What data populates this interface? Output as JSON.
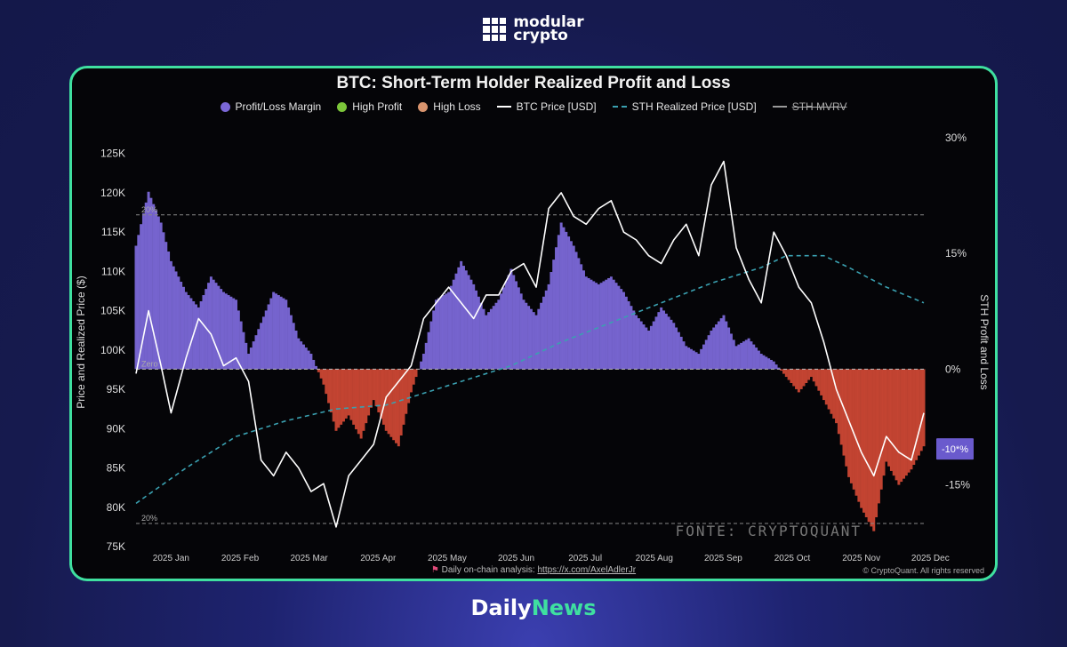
{
  "brand": {
    "line1": "modular",
    "line2": "crypto"
  },
  "footer_brand": {
    "part1": "Daily",
    "part2": "News"
  },
  "colors": {
    "profit": "#7b68d8",
    "loss": "#d64a36",
    "frame": "#3fe0a0",
    "btc": "#ffffff",
    "sth": "#3aa0b0"
  },
  "chart_data": {
    "type": "area",
    "title": "BTC: Short-Term Holder Realized Profit and Loss",
    "legend": [
      "Profit/Loss Margin",
      "High Profit",
      "High Loss",
      "BTC Price [USD]",
      "STH Realized Price [USD]",
      "STH MVRV"
    ],
    "ylabel_left": "Price and Realized Price ($)",
    "ylabel_right": "STH Profit and Loss",
    "left_ticks": [
      "125K",
      "120K",
      "115K",
      "110K",
      "105K",
      "100K",
      "95K",
      "90K",
      "85K",
      "80K",
      "75K"
    ],
    "right_ticks": [
      "30%",
      "15%",
      "0%",
      "-15%"
    ],
    "x_ticks": [
      "2025 Jan",
      "2025 Feb",
      "2025 Mar",
      "2025 Apr",
      "2025 May",
      "2025 Jun",
      "2025 Jul",
      "2025 Aug",
      "2025 Sep",
      "2025 Oct",
      "2025 Nov",
      "2025 Dec"
    ],
    "ref_lines": {
      "upper": "20%",
      "zero": "Zero",
      "lower": "20%"
    },
    "current_marker": "-10*%",
    "left_range": [
      75000,
      127000
    ],
    "right_range": [
      -23,
      30
    ],
    "margin_pct": [
      [
        0,
        16
      ],
      [
        5,
        23
      ],
      [
        10,
        19
      ],
      [
        14,
        14
      ],
      [
        20,
        10
      ],
      [
        25,
        8
      ],
      [
        30,
        12
      ],
      [
        35,
        10
      ],
      [
        40,
        9
      ],
      [
        45,
        2
      ],
      [
        50,
        6
      ],
      [
        55,
        10
      ],
      [
        60,
        9
      ],
      [
        65,
        4
      ],
      [
        70,
        2
      ],
      [
        75,
        -2
      ],
      [
        80,
        -8
      ],
      [
        85,
        -6
      ],
      [
        90,
        -9
      ],
      [
        95,
        -4
      ],
      [
        100,
        -8
      ],
      [
        105,
        -10
      ],
      [
        110,
        -3
      ],
      [
        115,
        2
      ],
      [
        120,
        9
      ],
      [
        125,
        10
      ],
      [
        130,
        14
      ],
      [
        135,
        11
      ],
      [
        140,
        7
      ],
      [
        145,
        9
      ],
      [
        150,
        13
      ],
      [
        155,
        9
      ],
      [
        160,
        7
      ],
      [
        165,
        11
      ],
      [
        170,
        19
      ],
      [
        175,
        16
      ],
      [
        180,
        12
      ],
      [
        185,
        11
      ],
      [
        190,
        12
      ],
      [
        195,
        10
      ],
      [
        200,
        7
      ],
      [
        205,
        5
      ],
      [
        210,
        8
      ],
      [
        215,
        6
      ],
      [
        220,
        3
      ],
      [
        225,
        2
      ],
      [
        230,
        5
      ],
      [
        235,
        7
      ],
      [
        240,
        3
      ],
      [
        245,
        4
      ],
      [
        250,
        2
      ],
      [
        255,
        1
      ],
      [
        260,
        -1
      ],
      [
        265,
        -3
      ],
      [
        270,
        -1
      ],
      [
        275,
        -4
      ],
      [
        280,
        -7
      ],
      [
        285,
        -14
      ],
      [
        290,
        -18
      ],
      [
        295,
        -21
      ],
      [
        300,
        -12
      ],
      [
        305,
        -15
      ],
      [
        310,
        -13
      ],
      [
        315,
        -10
      ]
    ],
    "btc_price": [
      [
        0,
        97000
      ],
      [
        5,
        105000
      ],
      [
        10,
        98000
      ],
      [
        14,
        92000
      ],
      [
        20,
        99000
      ],
      [
        25,
        104000
      ],
      [
        30,
        102000
      ],
      [
        35,
        98000
      ],
      [
        40,
        99000
      ],
      [
        45,
        96000
      ],
      [
        50,
        86000
      ],
      [
        55,
        84000
      ],
      [
        60,
        87000
      ],
      [
        65,
        85000
      ],
      [
        70,
        82000
      ],
      [
        75,
        83000
      ],
      [
        80,
        77500
      ],
      [
        85,
        84000
      ],
      [
        90,
        86000
      ],
      [
        95,
        88000
      ],
      [
        100,
        94000
      ],
      [
        105,
        96000
      ],
      [
        110,
        98000
      ],
      [
        115,
        104000
      ],
      [
        120,
        106000
      ],
      [
        125,
        108000
      ],
      [
        130,
        106000
      ],
      [
        135,
        104000
      ],
      [
        140,
        107000
      ],
      [
        145,
        107000
      ],
      [
        150,
        110000
      ],
      [
        155,
        111000
      ],
      [
        160,
        108000
      ],
      [
        165,
        118000
      ],
      [
        170,
        120000
      ],
      [
        175,
        117000
      ],
      [
        180,
        116000
      ],
      [
        185,
        118000
      ],
      [
        190,
        119000
      ],
      [
        195,
        115000
      ],
      [
        200,
        114000
      ],
      [
        205,
        112000
      ],
      [
        210,
        111000
      ],
      [
        215,
        114000
      ],
      [
        220,
        116000
      ],
      [
        225,
        112000
      ],
      [
        230,
        121000
      ],
      [
        235,
        124000
      ],
      [
        240,
        113000
      ],
      [
        245,
        109000
      ],
      [
        250,
        106000
      ],
      [
        255,
        115000
      ],
      [
        260,
        112000
      ],
      [
        265,
        108000
      ],
      [
        270,
        106000
      ],
      [
        275,
        101000
      ],
      [
        280,
        95000
      ],
      [
        285,
        91000
      ],
      [
        290,
        87000
      ],
      [
        295,
        84000
      ],
      [
        300,
        89000
      ],
      [
        305,
        87000
      ],
      [
        310,
        86000
      ],
      [
        315,
        92000
      ]
    ],
    "sth_realized": [
      [
        0,
        80500
      ],
      [
        20,
        85000
      ],
      [
        40,
        89000
      ],
      [
        60,
        91000
      ],
      [
        80,
        92500
      ],
      [
        100,
        93000
      ],
      [
        110,
        94000
      ],
      [
        130,
        96000
      ],
      [
        150,
        98000
      ],
      [
        170,
        101000
      ],
      [
        190,
        103500
      ],
      [
        210,
        106000
      ],
      [
        230,
        108500
      ],
      [
        250,
        110500
      ],
      [
        260,
        112000
      ],
      [
        275,
        112000
      ],
      [
        285,
        110500
      ],
      [
        300,
        108000
      ],
      [
        315,
        106000
      ]
    ]
  },
  "watermark": "FONTE: CRYPTOQUANT",
  "footer": {
    "text": "Daily on-chain analysis:",
    "link": "https://x.com/AxelAdlerJr",
    "copyright": "© CryptoQuant. All rights reserved"
  }
}
